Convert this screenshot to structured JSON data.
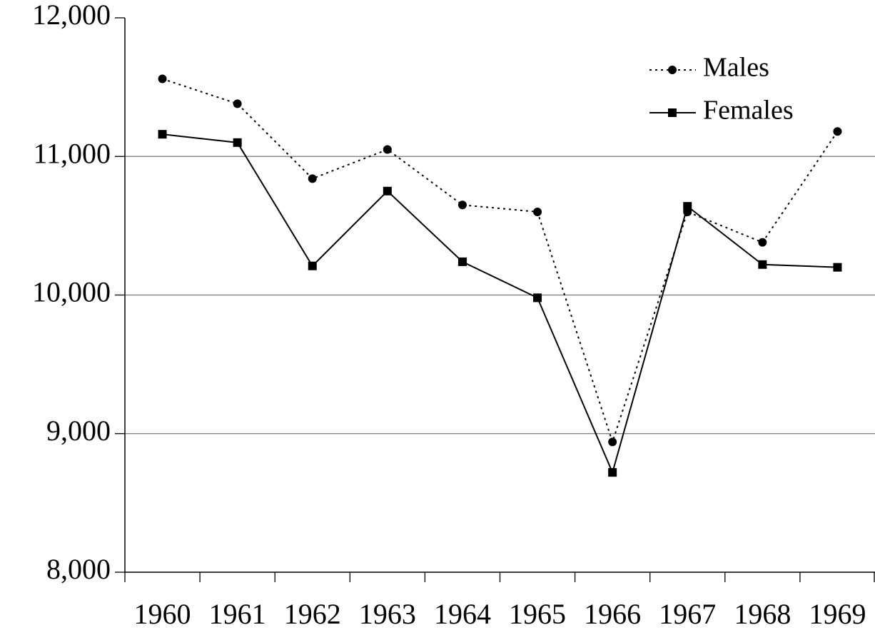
{
  "chart_data": {
    "type": "line",
    "categories": [
      "1960",
      "1961",
      "1962",
      "1963",
      "1964",
      "1965",
      "1966",
      "1967",
      "1968",
      "1969"
    ],
    "series": [
      {
        "name": "Males",
        "color": "#000000",
        "dash": "dotted",
        "marker": "circle",
        "values": [
          11560,
          11380,
          10840,
          11050,
          10650,
          10600,
          8940,
          10600,
          10380,
          11180
        ]
      },
      {
        "name": "Females",
        "color": "#000000",
        "dash": "solid",
        "marker": "square",
        "values": [
          11160,
          11100,
          10210,
          10750,
          10240,
          9980,
          8720,
          10640,
          10220,
          10200
        ]
      }
    ],
    "ylim": [
      8000,
      12000
    ],
    "yticks": [
      {
        "value": 8000,
        "label": "8,000"
      },
      {
        "value": 9000,
        "label": "9,000"
      },
      {
        "value": 10000,
        "label": "10,000"
      },
      {
        "value": 11000,
        "label": "11,000"
      },
      {
        "value": 12000,
        "label": "12,000"
      }
    ],
    "grid": true,
    "legend": "top-right"
  }
}
